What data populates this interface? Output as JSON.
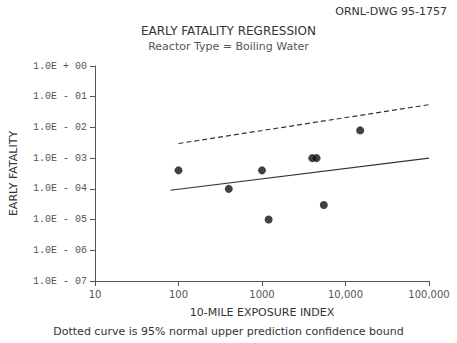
{
  "chart_data": {
    "type": "scatter",
    "title": "EARLY FATALITY REGRESSION",
    "subtitle": "Reactor Type = Boiling Water",
    "annotations": [
      "ORNL-DWG 95-1757",
      "Dotted curve is 95% normal upper prediction confidence bound"
    ],
    "xlabel": "10-MILE EXPOSURE INDEX",
    "ylabel": "EARLY FATALITY",
    "log": true,
    "grid": false,
    "xlim": [
      10,
      100000
    ],
    "ylim": [
      1e-07,
      1
    ],
    "xticks": [
      10,
      100,
      1000,
      {
        "value": 10000,
        "label": "10,000"
      },
      {
        "value": 100000,
        "label": "100,000"
      }
    ],
    "yticks": [
      {
        "value": 1,
        "label": "1.0E + 00"
      },
      {
        "value": 0.1,
        "label": "1.0E - 01"
      },
      {
        "value": 0.01,
        "label": "1.0E - 02"
      },
      {
        "value": 0.001,
        "label": "1.0E - 03"
      },
      {
        "value": 0.0001,
        "label": "1.0E - 04"
      },
      {
        "value": 1e-05,
        "label": "1.0E - 05"
      },
      {
        "value": 1e-06,
        "label": "1.0E - 06"
      },
      {
        "value": 1e-07,
        "label": "1.0E - 07"
      }
    ],
    "series": [
      {
        "type": "scatter",
        "color": "#111111",
        "marker": "circle",
        "x": [
          100,
          400,
          1000,
          1200,
          4000,
          4500,
          5500,
          15000
        ],
        "values": [
          0.0004,
          0.0001,
          0.0004,
          1e-05,
          0.001,
          0.001,
          3e-05,
          0.008
        ]
      },
      {
        "type": "line",
        "color": "#333333",
        "line_style": "solid",
        "x": [
          80,
          100000
        ],
        "values": [
          9e-05,
          0.001
        ]
      },
      {
        "type": "line",
        "color": "#333333",
        "line_style": "dashed",
        "x": [
          100,
          100000
        ],
        "values": [
          0.003,
          0.055
        ]
      }
    ]
  }
}
